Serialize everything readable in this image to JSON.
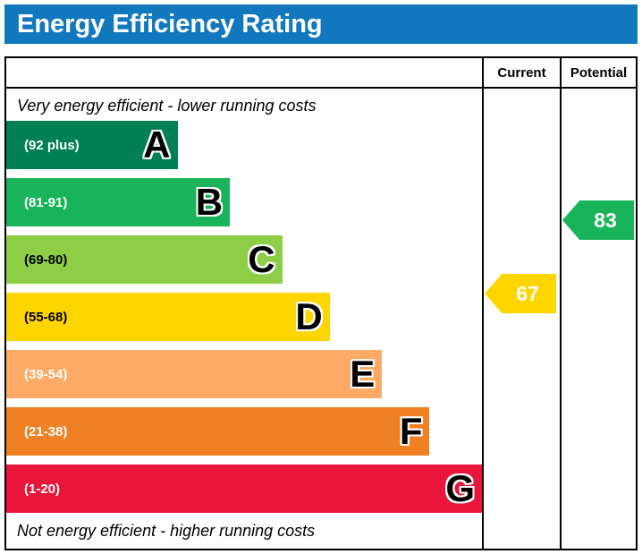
{
  "title_bar": {
    "title": "Energy Efficiency Rating"
  },
  "header": {
    "current_label": "Current",
    "potential_label": "Potential"
  },
  "notes": {
    "top": "Very energy efficient - lower running costs",
    "bottom": "Not energy efficient - higher running costs"
  },
  "bands": [
    {
      "letter": "A",
      "range": "(92 plus)",
      "color": "#008054",
      "text_color": "#ffffff",
      "width_pct": 36
    },
    {
      "letter": "B",
      "range": "(81-91)",
      "color": "#19b459",
      "text_color": "#ffffff",
      "width_pct": 47
    },
    {
      "letter": "C",
      "range": "(69-80)",
      "color": "#8dce46",
      "text_color": "#000000",
      "width_pct": 58
    },
    {
      "letter": "D",
      "range": "(55-68)",
      "color": "#ffd500",
      "text_color": "#000000",
      "width_pct": 68
    },
    {
      "letter": "E",
      "range": "(39-54)",
      "color": "#fcaa65",
      "text_color": "#ffffff",
      "width_pct": 79
    },
    {
      "letter": "F",
      "range": "(21-38)",
      "color": "#ef8023",
      "text_color": "#ffffff",
      "width_pct": 89
    },
    {
      "letter": "G",
      "range": "(1-20)",
      "color": "#e9153b",
      "text_color": "#ffffff",
      "width_pct": 100
    }
  ],
  "markers": {
    "current": {
      "value": "67",
      "color": "#ffd500"
    },
    "potential": {
      "value": "83",
      "color": "#19b459"
    }
  },
  "colors": {
    "title_bar_bg": "#1278be",
    "border": "#000000"
  },
  "chart_data": {
    "type": "bar",
    "title": "Energy Efficiency Rating",
    "orientation": "horizontal",
    "categories": [
      "A",
      "B",
      "C",
      "D",
      "E",
      "F",
      "G"
    ],
    "category_ranges": [
      "(92 plus)",
      "(81-91)",
      "(69-80)",
      "(55-68)",
      "(39-54)",
      "(21-38)",
      "(1-20)"
    ],
    "bar_lengths_pct": [
      36,
      47,
      58,
      68,
      79,
      89,
      100
    ],
    "bar_colors": [
      "#008054",
      "#19b459",
      "#8dce46",
      "#ffd500",
      "#fcaa65",
      "#ef8023",
      "#e9153b"
    ],
    "columns": [
      "Current",
      "Potential"
    ],
    "markers": [
      {
        "column": "Current",
        "value": 67,
        "band": "D",
        "color": "#ffd500"
      },
      {
        "column": "Potential",
        "value": 83,
        "band": "B",
        "color": "#19b459"
      }
    ],
    "annotations": [
      "Very energy efficient - lower running costs",
      "Not energy efficient - higher running costs"
    ]
  }
}
